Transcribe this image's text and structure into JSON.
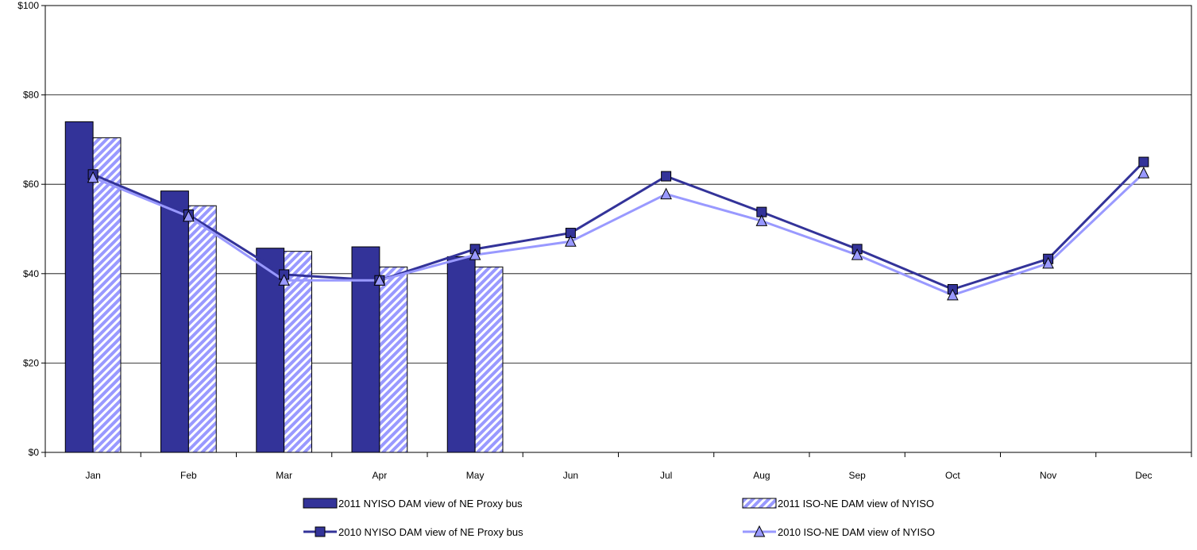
{
  "chart_data": {
    "type": "bar",
    "categories": [
      "Jan",
      "Feb",
      "Mar",
      "Apr",
      "May",
      "Jun",
      "Jul",
      "Aug",
      "Sep",
      "Oct",
      "Nov",
      "Dec"
    ],
    "ylim": [
      0,
      100
    ],
    "yticks": [
      0,
      20,
      40,
      60,
      80,
      100
    ],
    "ytick_labels": [
      "$0",
      "$20",
      "$40",
      "$60",
      "$80",
      "$100"
    ],
    "grid": true,
    "legend_placement": "bottom",
    "title": "",
    "xlabel": "",
    "ylabel": "",
    "series": [
      {
        "name": "2011 NYISO DAM view of NE Proxy bus",
        "kind": "bar",
        "style": "solid",
        "color": "#333399",
        "values": [
          74,
          58.5,
          45.7,
          46,
          43.8,
          null,
          null,
          null,
          null,
          null,
          null,
          null
        ]
      },
      {
        "name": "2011 ISO-NE DAM view of NYISO",
        "kind": "bar",
        "style": "hatched",
        "color": "#9999ff",
        "values": [
          70.4,
          55.2,
          45,
          41.5,
          41.5,
          null,
          null,
          null,
          null,
          null,
          null,
          null
        ]
      },
      {
        "name": "2010 NYISO DAM view of NE Proxy bus",
        "kind": "line",
        "marker": "square",
        "color": "#333399",
        "values": [
          62.2,
          53.2,
          39.8,
          38.5,
          45.5,
          49.1,
          61.8,
          53.8,
          45.5,
          36.5,
          43.3,
          65
        ]
      },
      {
        "name": "2010 ISO-NE DAM view of NYISO",
        "kind": "line",
        "marker": "triangle",
        "color": "#9999ff",
        "values": [
          61.5,
          52.8,
          38.5,
          38.5,
          44.2,
          47.2,
          57.8,
          51.8,
          44.2,
          35.2,
          42.3,
          62.5
        ]
      }
    ]
  }
}
